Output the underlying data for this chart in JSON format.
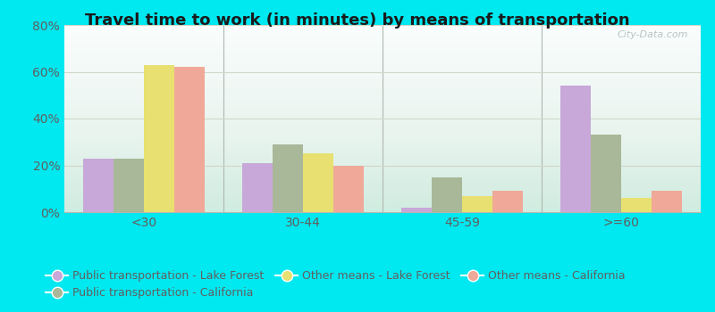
{
  "title": "Travel time to work (in minutes) by means of transportation",
  "categories": [
    "<30",
    "30-44",
    "45-59",
    ">=60"
  ],
  "series_order": [
    "Public transportation - Lake Forest",
    "Public transportation - California",
    "Other means - Lake Forest",
    "Other means - California"
  ],
  "series": {
    "Public transportation - Lake Forest": [
      23,
      21,
      2,
      54
    ],
    "Public transportation - California": [
      23,
      29,
      15,
      33
    ],
    "Other means - Lake Forest": [
      63,
      25,
      7,
      6
    ],
    "Other means - California": [
      62,
      20,
      9,
      9
    ]
  },
  "colors": {
    "Public transportation - Lake Forest": "#c8a8d8",
    "Public transportation - California": "#a8b898",
    "Other means - Lake Forest": "#e8e070",
    "Other means - California": "#f0a898"
  },
  "ylim": [
    0,
    80
  ],
  "yticks": [
    0,
    20,
    40,
    60,
    80
  ],
  "ytick_labels": [
    "0%",
    "20%",
    "40%",
    "60%",
    "80%"
  ],
  "outer_background": "#00e8f0",
  "grid_color": "#d0d8c8",
  "bar_width": 0.19,
  "title_fontsize": 13,
  "legend_fontsize": 9,
  "tick_fontsize": 10,
  "watermark": "City-Data.com",
  "tick_color": "#606060"
}
